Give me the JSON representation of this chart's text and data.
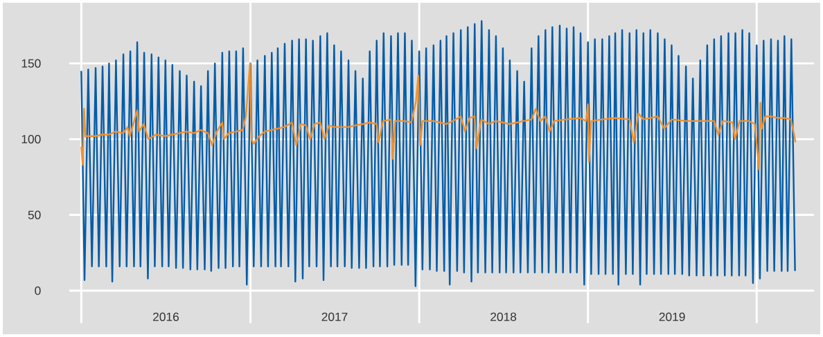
{
  "chart_data": {
    "type": "line",
    "xlim": [
      "2015-12-06",
      "2020-05-04"
    ],
    "ylim": [
      -5,
      185
    ],
    "xticks": [
      {
        "value": "2016-01-01",
        "label": null
      },
      {
        "value": "2016-07-02",
        "label": "2016"
      },
      {
        "value": "2017-01-01",
        "label": null
      },
      {
        "value": "2017-07-02",
        "label": "2017"
      },
      {
        "value": "2018-01-01",
        "label": null
      },
      {
        "value": "2018-07-02",
        "label": "2018"
      },
      {
        "value": "2019-01-01",
        "label": null
      },
      {
        "value": "2019-07-02",
        "label": "2019"
      },
      {
        "value": "2020-01-01",
        "label": null
      }
    ],
    "yticks": [
      0,
      50,
      100,
      150
    ],
    "grid": true,
    "series": [
      {
        "color": "#005ca9",
        "x": [
          "2016-01-01",
          "2016-01-08",
          "2016-01-16",
          "2016-01-24",
          "2016-02-01",
          "2016-02-08",
          "2016-02-16",
          "2016-02-24",
          "2016-03-01",
          "2016-03-08",
          "2016-03-16",
          "2016-03-24",
          "2016-04-01",
          "2016-04-08",
          "2016-04-16",
          "2016-04-24",
          "2016-05-01",
          "2016-05-08",
          "2016-05-16",
          "2016-05-24",
          "2016-06-01",
          "2016-06-08",
          "2016-06-16",
          "2016-06-24",
          "2016-07-01",
          "2016-07-08",
          "2016-07-16",
          "2016-07-24",
          "2016-08-01",
          "2016-08-08",
          "2016-08-16",
          "2016-08-24",
          "2016-09-01",
          "2016-09-08",
          "2016-09-16",
          "2016-09-24",
          "2016-10-01",
          "2016-10-08",
          "2016-10-16",
          "2016-10-24",
          "2016-11-01",
          "2016-11-08",
          "2016-11-16",
          "2016-11-24",
          "2016-12-01",
          "2016-12-08",
          "2016-12-16",
          "2016-12-24",
          "2017-01-01",
          "2017-01-08",
          "2017-01-16",
          "2017-01-24",
          "2017-02-01",
          "2017-02-08",
          "2017-02-16",
          "2017-02-24",
          "2017-03-01",
          "2017-03-08",
          "2017-03-16",
          "2017-03-24",
          "2017-04-01",
          "2017-04-08",
          "2017-04-16",
          "2017-04-24",
          "2017-05-01",
          "2017-05-08",
          "2017-05-16",
          "2017-05-24",
          "2017-06-01",
          "2017-06-08",
          "2017-06-16",
          "2017-06-24",
          "2017-07-01",
          "2017-07-08",
          "2017-07-16",
          "2017-07-24",
          "2017-08-01",
          "2017-08-08",
          "2017-08-16",
          "2017-08-24",
          "2017-09-01",
          "2017-09-08",
          "2017-09-16",
          "2017-09-24",
          "2017-10-01",
          "2017-10-08",
          "2017-10-16",
          "2017-10-24",
          "2017-11-01",
          "2017-11-08",
          "2017-11-16",
          "2017-11-24",
          "2017-12-01",
          "2017-12-08",
          "2017-12-16",
          "2017-12-24",
          "2018-01-01",
          "2018-01-08",
          "2018-01-16",
          "2018-01-24",
          "2018-02-01",
          "2018-02-08",
          "2018-02-16",
          "2018-02-24",
          "2018-03-01",
          "2018-03-08",
          "2018-03-16",
          "2018-03-24",
          "2018-04-01",
          "2018-04-08",
          "2018-04-16",
          "2018-04-24",
          "2018-05-01",
          "2018-05-08",
          "2018-05-16",
          "2018-05-24",
          "2018-06-01",
          "2018-06-08",
          "2018-06-16",
          "2018-06-24",
          "2018-07-01",
          "2018-07-08",
          "2018-07-16",
          "2018-07-24",
          "2018-08-01",
          "2018-08-08",
          "2018-08-16",
          "2018-08-24",
          "2018-09-01",
          "2018-09-08",
          "2018-09-16",
          "2018-09-24",
          "2018-10-01",
          "2018-10-08",
          "2018-10-16",
          "2018-10-24",
          "2018-11-01",
          "2018-11-08",
          "2018-11-16",
          "2018-11-24",
          "2018-12-01",
          "2018-12-08",
          "2018-12-16",
          "2018-12-24",
          "2019-01-01",
          "2019-01-08",
          "2019-01-16",
          "2019-01-24",
          "2019-02-01",
          "2019-02-08",
          "2019-02-16",
          "2019-02-24",
          "2019-03-01",
          "2019-03-08",
          "2019-03-16",
          "2019-03-24",
          "2019-04-01",
          "2019-04-08",
          "2019-04-16",
          "2019-04-24",
          "2019-05-01",
          "2019-05-08",
          "2019-05-16",
          "2019-05-24",
          "2019-06-01",
          "2019-06-08",
          "2019-06-16",
          "2019-06-24",
          "2019-07-01",
          "2019-07-08",
          "2019-07-16",
          "2019-07-24",
          "2019-08-01",
          "2019-08-08",
          "2019-08-16",
          "2019-08-24",
          "2019-09-01",
          "2019-09-08",
          "2019-09-16",
          "2019-09-24",
          "2019-10-01",
          "2019-10-08",
          "2019-10-16",
          "2019-10-24",
          "2019-11-01",
          "2019-11-08",
          "2019-11-16",
          "2019-11-24",
          "2019-12-01",
          "2019-12-08",
          "2019-12-16",
          "2019-12-24",
          "2020-01-01",
          "2020-01-08",
          "2020-01-16",
          "2020-01-24",
          "2020-02-01",
          "2020-02-08",
          "2020-02-16",
          "2020-02-24",
          "2020-03-01",
          "2020-03-08",
          "2020-03-16",
          "2020-03-24"
        ],
        "values": [
          145,
          7,
          146,
          16,
          147,
          16,
          148,
          16,
          150,
          6,
          152,
          16,
          156,
          16,
          158,
          16,
          164,
          16,
          157,
          8,
          156,
          16,
          154,
          16,
          152,
          16,
          149,
          15,
          145,
          15,
          142,
          14,
          138,
          14,
          135,
          14,
          145,
          13,
          150,
          15,
          157,
          15,
          158,
          16,
          158,
          16,
          160,
          4,
          150,
          16,
          152,
          16,
          155,
          16,
          157,
          16,
          160,
          16,
          163,
          16,
          165,
          6,
          166,
          8,
          166,
          16,
          165,
          16,
          168,
          7,
          170,
          16,
          162,
          16,
          158,
          16,
          152,
          15,
          145,
          15,
          140,
          15,
          158,
          16,
          165,
          16,
          170,
          16,
          168,
          17,
          170,
          17,
          170,
          17,
          165,
          3,
          158,
          14,
          160,
          14,
          162,
          13,
          165,
          13,
          168,
          4,
          170,
          13,
          172,
          12,
          174,
          6,
          176,
          12,
          178,
          12,
          172,
          12,
          168,
          12,
          160,
          12,
          152,
          12,
          145,
          12,
          138,
          12,
          160,
          12,
          168,
          12,
          172,
          12,
          174,
          12,
          175,
          12,
          173,
          12,
          174,
          12,
          170,
          4,
          164,
          11,
          166,
          11,
          166,
          11,
          168,
          11,
          170,
          4,
          172,
          11,
          170,
          11,
          172,
          4,
          170,
          11,
          172,
          11,
          170,
          11,
          166,
          11,
          162,
          11,
          155,
          11,
          148,
          10,
          140,
          10,
          152,
          10,
          162,
          10,
          166,
          10,
          168,
          10,
          170,
          10,
          170,
          10,
          172,
          10,
          170,
          5,
          162,
          8,
          165,
          13,
          166,
          13,
          165,
          13,
          168,
          13,
          166,
          13
        ]
      },
      {
        "color": "#f0912f",
        "x": [
          "2016-01-01",
          "2016-01-04",
          "2016-01-07",
          "2016-01-10",
          "2016-01-20",
          "2016-02-01",
          "2016-02-15",
          "2016-03-01",
          "2016-03-15",
          "2016-04-01",
          "2016-04-10",
          "2016-04-15",
          "2016-05-01",
          "2016-05-05",
          "2016-05-15",
          "2016-05-25",
          "2016-06-10",
          "2016-07-01",
          "2016-07-15",
          "2016-08-01",
          "2016-08-15",
          "2016-09-01",
          "2016-09-15",
          "2016-10-01",
          "2016-10-10",
          "2016-10-20",
          "2016-11-01",
          "2016-11-05",
          "2016-11-15",
          "2016-12-01",
          "2016-12-15",
          "2016-12-22",
          "2016-12-27",
          "2016-12-31",
          "2017-01-03",
          "2017-01-08",
          "2017-01-20",
          "2017-02-01",
          "2017-02-15",
          "2017-03-01",
          "2017-03-15",
          "2017-04-01",
          "2017-04-10",
          "2017-04-20",
          "2017-05-01",
          "2017-05-10",
          "2017-05-20",
          "2017-06-01",
          "2017-06-10",
          "2017-06-20",
          "2017-07-01",
          "2017-07-15",
          "2017-08-01",
          "2017-08-15",
          "2017-09-01",
          "2017-09-15",
          "2017-10-01",
          "2017-10-05",
          "2017-10-15",
          "2017-11-01",
          "2017-11-05",
          "2017-11-10",
          "2017-12-01",
          "2017-12-15",
          "2017-12-25",
          "2017-12-30",
          "2018-01-03",
          "2018-01-08",
          "2018-02-01",
          "2018-02-15",
          "2018-03-01",
          "2018-03-15",
          "2018-04-01",
          "2018-04-10",
          "2018-04-20",
          "2018-05-01",
          "2018-05-05",
          "2018-05-15",
          "2018-06-01",
          "2018-06-15",
          "2018-07-01",
          "2018-07-15",
          "2018-08-01",
          "2018-08-15",
          "2018-09-01",
          "2018-09-10",
          "2018-09-20",
          "2018-10-01",
          "2018-10-10",
          "2018-10-20",
          "2018-11-15",
          "2018-12-15",
          "2018-12-28",
          "2019-01-01",
          "2019-01-03",
          "2019-01-08",
          "2019-02-01",
          "2019-03-01",
          "2019-04-01",
          "2019-04-10",
          "2019-04-20",
          "2019-05-01",
          "2019-06-01",
          "2019-06-15",
          "2019-07-01",
          "2019-08-01",
          "2019-09-01",
          "2019-10-01",
          "2019-10-10",
          "2019-10-20",
          "2019-11-10",
          "2019-11-15",
          "2019-11-25",
          "2019-12-15",
          "2019-12-28",
          "2020-01-03",
          "2020-01-06",
          "2020-01-09",
          "2020-01-12",
          "2020-01-20",
          "2020-02-01",
          "2020-02-15",
          "2020-03-01",
          "2020-03-15",
          "2020-03-22",
          "2020-03-25"
        ],
        "values": [
          95,
          83,
          120,
          102,
          102,
          102,
          103,
          103,
          105,
          104,
          108,
          102,
          119,
          105,
          110,
          100,
          103,
          102,
          103,
          104,
          105,
          104,
          106,
          104,
          96,
          105,
          111,
          100,
          104,
          105,
          106,
          115,
          135,
          150,
          100,
          97,
          102,
          105,
          106,
          107,
          108,
          111,
          96,
          110,
          109,
          100,
          110,
          111,
          100,
          109,
          108,
          108,
          108,
          109,
          110,
          111,
          110,
          98,
          112,
          113,
          87,
          112,
          112,
          111,
          125,
          142,
          96,
          112,
          112,
          111,
          110,
          112,
          115,
          105,
          114,
          115,
          94,
          113,
          110,
          112,
          111,
          110,
          111,
          112,
          113,
          120,
          112,
          115,
          105,
          112,
          113,
          114,
          112,
          123,
          85,
          112,
          113,
          114,
          113,
          98,
          117,
          113,
          115,
          107,
          113,
          112,
          112,
          112,
          103,
          112,
          111,
          100,
          112,
          112,
          110,
          90,
          80,
          124,
          107,
          115,
          115,
          114,
          114,
          113,
          103,
          98
        ]
      }
    ]
  }
}
